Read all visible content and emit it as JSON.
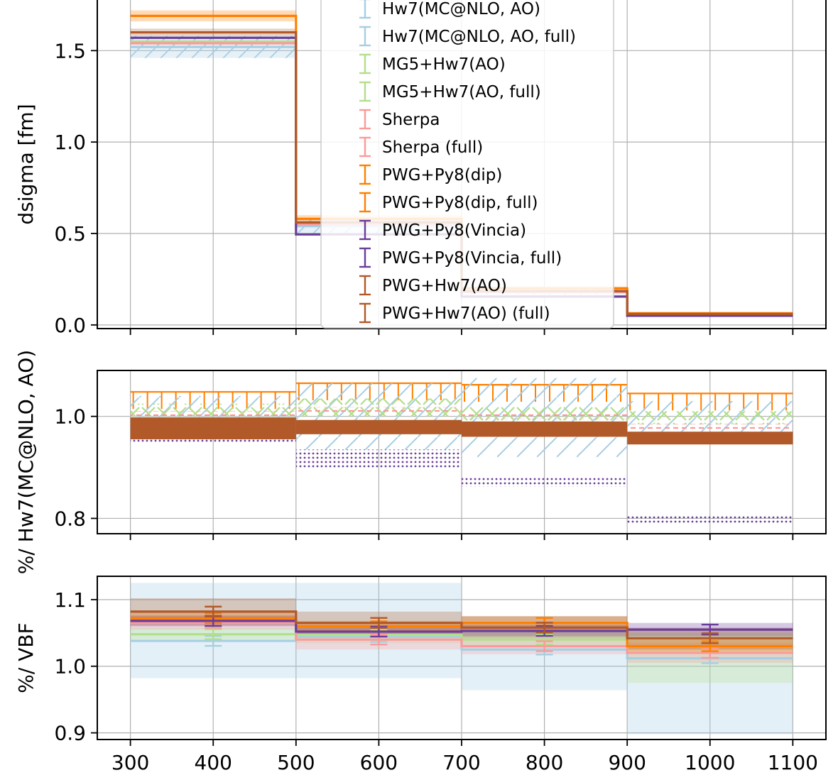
{
  "chart_data": {
    "type": "line",
    "xticks": [
      300,
      400,
      500,
      600,
      700,
      800,
      900,
      1000,
      1100
    ],
    "bin_edges": [
      300,
      500,
      700,
      900,
      1100
    ],
    "bin_centers": [
      400,
      600,
      800,
      1000
    ],
    "colors": {
      "hw7": "#a6cee3",
      "mg5": "#b2df8a",
      "sherpa": "#fb9a99",
      "pwgpy8dip": "#ff7f00",
      "vincia": "#6a3d9a",
      "pwghw7": "#b15928"
    },
    "legend": {
      "placement": "upper center",
      "entries": [
        {
          "label": "Hw7(MC@NLO, AO)",
          "color": "#a6cee3"
        },
        {
          "label": "Hw7(MC@NLO, AO, full)",
          "color": "#a6cee3"
        },
        {
          "label": "MG5+Hw7(AO)",
          "color": "#b2df8a"
        },
        {
          "label": "MG5+Hw7(AO, full)",
          "color": "#b2df8a"
        },
        {
          "label": "Sherpa",
          "color": "#fb9a99"
        },
        {
          "label": "Sherpa  (full)",
          "color": "#fb9a99"
        },
        {
          "label": "PWG+Py8(dip)",
          "color": "#ff7f00"
        },
        {
          "label": "PWG+Py8(dip, full)",
          "color": "#ff7f00"
        },
        {
          "label": "PWG+Py8(Vincia)",
          "color": "#6a3d9a"
        },
        {
          "label": "PWG+Py8(Vincia, full)",
          "color": "#6a3d9a"
        },
        {
          "label": "PWG+Hw7(AO)",
          "color": "#b15928"
        },
        {
          "label": "PWG+Hw7(AO) (full)",
          "color": "#b15928"
        }
      ]
    },
    "panels": [
      {
        "id": "main",
        "ylabel": "dsigma [fm]",
        "ylim": [
          -0.02,
          1.8
        ],
        "yticks": [
          0.0,
          0.5,
          1.0,
          1.5
        ],
        "ytick_labels": [
          "0.0",
          "0.5",
          "1.0",
          "1.5"
        ],
        "series": [
          {
            "key": "hw7",
            "values": [
              1.52,
              0.54,
              0.18,
              0.06
            ],
            "band": [
              [
                1.46,
                1.58
              ],
              [
                0.5,
                0.58
              ],
              [
                0.165,
                0.195
              ],
              [
                0.055,
                0.065
              ]
            ]
          },
          {
            "key": "mg5",
            "values": [
              1.55,
              0.555,
              0.182,
              0.061
            ]
          },
          {
            "key": "sherpa",
            "values": [
              1.54,
              0.55,
              0.18,
              0.059
            ]
          },
          {
            "key": "pwgpy8dip",
            "values": [
              1.69,
              0.58,
              0.2,
              0.064
            ],
            "band": [
              [
                1.66,
                1.72
              ],
              [
                0.56,
                0.6
              ],
              [
                0.19,
                0.21
              ],
              [
                0.062,
                0.066
              ]
            ]
          },
          {
            "key": "vincia",
            "values": [
              1.57,
              0.495,
              0.155,
              0.05
            ]
          },
          {
            "key": "pwghw7",
            "values": [
              1.6,
              0.56,
              0.185,
              0.06
            ],
            "band": [
              [
                1.58,
                1.62
              ],
              [
                0.55,
                0.57
              ],
              [
                0.18,
                0.19
              ],
              [
                0.058,
                0.062
              ]
            ]
          }
        ]
      },
      {
        "id": "ratio-hw7",
        "ylabel": "%/ Hw7(MC@NLO, AO)",
        "ylim": [
          0.77,
          1.09
        ],
        "yticks": [
          0.8,
          1.0
        ],
        "ytick_labels": [
          "0.8",
          "1.0"
        ],
        "hatch_bands": [
          {
            "key": "pwgpy8dip",
            "pattern": "errbar",
            "lo": [
              1.005,
              1.015,
              1.015,
              0.99
            ],
            "hi": [
              1.048,
              1.065,
              1.062,
              1.045
            ]
          },
          {
            "key": "hw7",
            "pattern": "diag",
            "lo": [
              0.96,
              0.935,
              0.92,
              0.97
            ],
            "hi": [
              1.04,
              1.065,
              1.075,
              1.03
            ]
          },
          {
            "key": "mg5",
            "pattern": "cross",
            "lo": [
              1.0,
              1.0,
              0.985,
              0.985
            ],
            "hi": [
              1.025,
              1.035,
              1.02,
              1.01
            ]
          },
          {
            "key": "sherpa",
            "pattern": "dash",
            "lo": [
              1.0,
              1.005,
              0.995,
              0.975
            ],
            "hi": [
              1.01,
              1.018,
              1.008,
              0.985
            ]
          },
          {
            "key": "pwghw7",
            "pattern": "solid",
            "lo": [
              0.955,
              0.965,
              0.96,
              0.945
            ],
            "hi": [
              0.998,
              0.993,
              0.99,
              0.97
            ]
          },
          {
            "key": "vincia",
            "pattern": "dots",
            "lo": [
              0.95,
              0.9,
              0.862,
              0.79
            ],
            "hi": [
              0.955,
              0.935,
              0.882,
              0.808
            ]
          }
        ]
      },
      {
        "id": "ratio-vbf",
        "ylabel": "%/ VBF",
        "xlabel": "",
        "ylim": [
          0.89,
          1.135
        ],
        "yticks": [
          0.9,
          1.0,
          1.1
        ],
        "ytick_labels": [
          "0.9",
          "1.0",
          "1.1"
        ],
        "series": [
          {
            "key": "hw7",
            "values": [
              1.038,
              1.044,
              1.025,
              1.012
            ],
            "band": [
              [
                0.982,
                1.125
              ],
              [
                0.982,
                1.125
              ],
              [
                0.964,
                1.075
              ],
              [
                0.898,
                1.055
              ]
            ]
          },
          {
            "key": "mg5",
            "values": [
              1.048,
              1.047,
              1.04,
              1.03
            ],
            "band": [
              [
                1.04,
                1.058
              ],
              [
                1.035,
                1.058
              ],
              [
                1.028,
                1.053
              ],
              [
                0.975,
                1.05
              ]
            ]
          },
          {
            "key": "sherpa",
            "values": [
              1.065,
              1.04,
              1.03,
              1.02
            ],
            "band": [
              [
                1.055,
                1.075
              ],
              [
                1.025,
                1.055
              ],
              [
                1.018,
                1.042
              ],
              [
                1.005,
                1.035
              ]
            ]
          },
          {
            "key": "pwgpy8dip",
            "values": [
              1.072,
              1.06,
              1.065,
              1.03
            ],
            "band": [
              [
                1.064,
                1.082
              ],
              [
                1.05,
                1.068
              ],
              [
                1.055,
                1.075
              ],
              [
                1.022,
                1.04
              ]
            ]
          },
          {
            "key": "vincia",
            "values": [
              1.068,
              1.052,
              1.053,
              1.055
            ],
            "band": [
              [
                1.06,
                1.076
              ],
              [
                1.043,
                1.061
              ],
              [
                1.045,
                1.062
              ],
              [
                1.045,
                1.065
              ]
            ]
          },
          {
            "key": "pwghw7",
            "values": [
              1.082,
              1.065,
              1.058,
              1.042
            ],
            "band": [
              [
                1.062,
                1.102
              ],
              [
                1.048,
                1.082
              ],
              [
                1.042,
                1.075
              ],
              [
                1.025,
                1.058
              ]
            ]
          }
        ]
      }
    ]
  }
}
